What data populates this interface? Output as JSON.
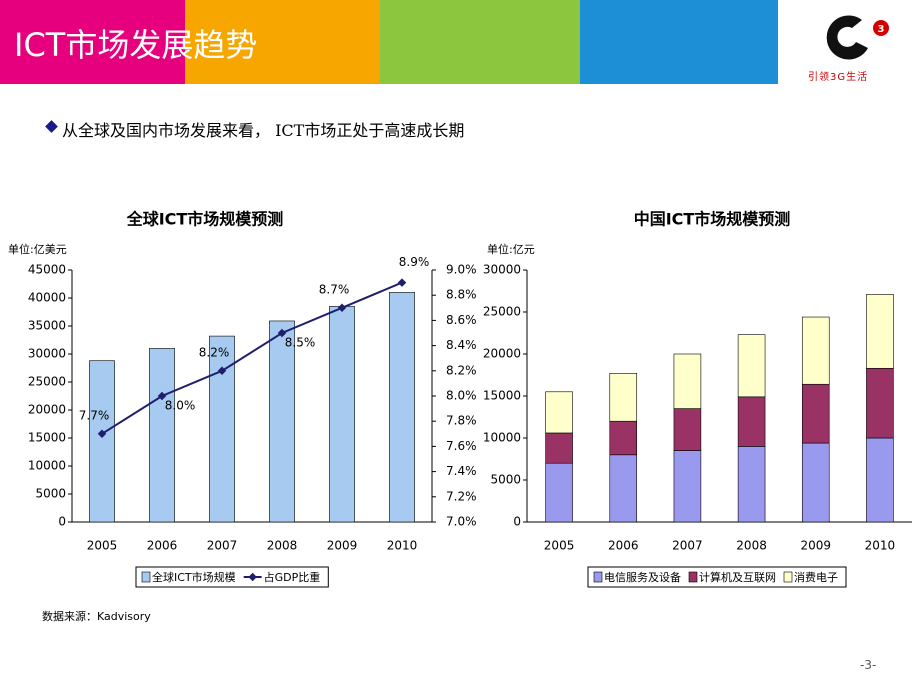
{
  "header": {
    "title": "ICT市场发展趋势",
    "logo_text": "引领3G生活"
  },
  "bullet": "从全球及国内市场发展来看， ICT市场正处于高速成长期",
  "source": "数据来源：Kadvisory",
  "page_number": "-3-",
  "chart_data": [
    {
      "type": "bar",
      "title": "全球ICT市场规模预测",
      "y_label": "单位:亿美元",
      "categories": [
        "2005",
        "2006",
        "2007",
        "2008",
        "2009",
        "2010"
      ],
      "series": [
        {
          "name": "全球ICT市场规模",
          "color": "#a6caf0",
          "values": [
            28800,
            31000,
            33200,
            35900,
            38500,
            41000
          ]
        },
        {
          "name": "占GDP比重",
          "type": "line",
          "axis": "y2",
          "color": "#1f1f6e",
          "values": [
            7.7,
            8.0,
            8.2,
            8.5,
            8.7,
            8.9
          ],
          "value_labels": [
            "7.7%",
            "8.0%",
            "8.2%",
            "8.5%",
            "8.7%",
            "8.9%"
          ]
        }
      ],
      "ylim": [
        0,
        45000
      ],
      "yticks": [
        0,
        5000,
        10000,
        15000,
        20000,
        25000,
        30000,
        35000,
        40000,
        45000
      ],
      "y2lim": [
        7.0,
        9.0
      ],
      "y2ticks": [
        {
          "value": 7.0,
          "label": "7.0%"
        },
        {
          "value": 7.2,
          "label": "7.2%"
        },
        {
          "value": 7.4,
          "label": "7.4%"
        },
        {
          "value": 7.6,
          "label": "7.6%"
        },
        {
          "value": 7.8,
          "label": "7.8%"
        },
        {
          "value": 8.0,
          "label": "8.0%"
        },
        {
          "value": 8.2,
          "label": "8.2%"
        },
        {
          "value": 8.4,
          "label": "8.4%"
        },
        {
          "value": 8.6,
          "label": "8.6%"
        },
        {
          "value": 8.8,
          "label": "8.8%"
        },
        {
          "value": 9.0,
          "label": "9.0%"
        }
      ],
      "legend": "bottom"
    },
    {
      "type": "stacked_bar",
      "title": "中国ICT市场规模预测",
      "y_label": "单位:亿元",
      "categories": [
        "2005",
        "2006",
        "2007",
        "2008",
        "2009",
        "2010"
      ],
      "series": [
        {
          "name": "电信服务及设备",
          "color": "#9999ee",
          "values": [
            7000,
            8000,
            8500,
            9000,
            9400,
            10000
          ]
        },
        {
          "name": "计算机及互联网",
          "color": "#993366",
          "values": [
            3600,
            4000,
            5000,
            5900,
            7000,
            8300
          ]
        },
        {
          "name": "消费电子",
          "color": "#ffffcc",
          "values": [
            4900,
            5700,
            6500,
            7400,
            8000,
            8800
          ]
        }
      ],
      "ylim": [
        0,
        30000
      ],
      "yticks": [
        0,
        5000,
        10000,
        15000,
        20000,
        25000,
        30000
      ],
      "legend": "bottom"
    }
  ]
}
